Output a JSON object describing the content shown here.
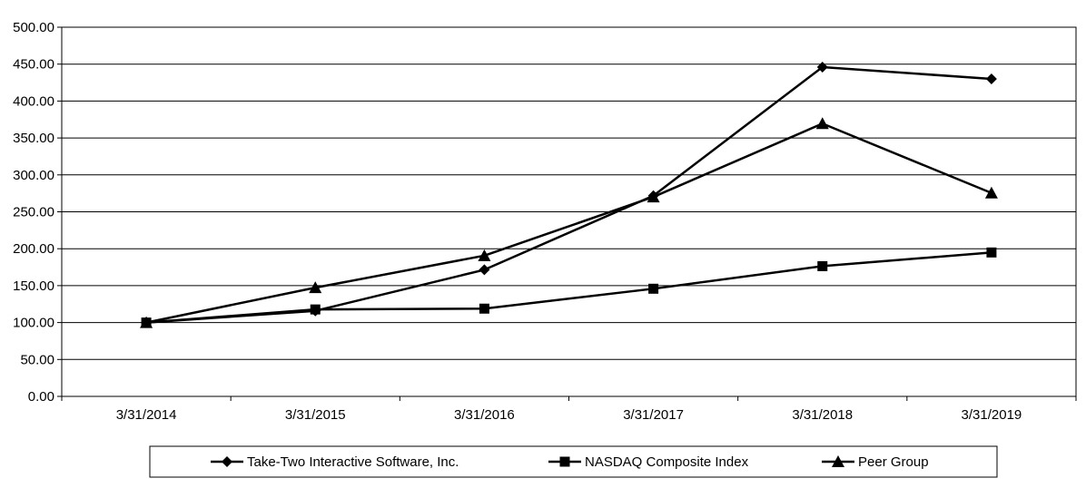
{
  "chart_data": {
    "type": "line",
    "title": "",
    "xlabel": "",
    "ylabel": "",
    "categories": [
      "3/31/2014",
      "3/31/2015",
      "3/31/2016",
      "3/31/2017",
      "3/31/2018",
      "3/31/2019"
    ],
    "ylim": [
      0,
      500
    ],
    "yticks": [
      "0.00",
      "50.00",
      "100.00",
      "150.00",
      "200.00",
      "250.00",
      "300.00",
      "350.00",
      "400.00",
      "450.00",
      "500.00"
    ],
    "grid": true,
    "legend_position": "bottom",
    "series": [
      {
        "name": "Take-Two Interactive Software, Inc.",
        "marker": "diamond",
        "color": "#000000",
        "values": [
          100.0,
          115.82,
          171.49,
          271.84,
          446.01,
          429.95
        ]
      },
      {
        "name": "NASDAQ Composite Index",
        "marker": "square",
        "color": "#000000",
        "values": [
          100.0,
          117.76,
          118.85,
          145.81,
          176.38,
          194.91
        ]
      },
      {
        "name": "Peer Group",
        "marker": "triangle",
        "color": "#000000",
        "values": [
          100.0,
          147.24,
          190.64,
          270.17,
          369.44,
          275.48
        ]
      }
    ]
  }
}
